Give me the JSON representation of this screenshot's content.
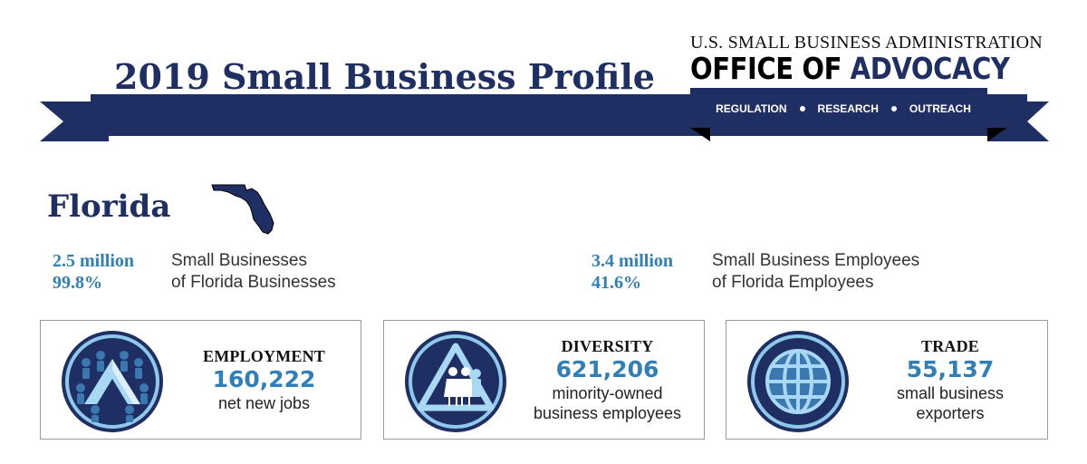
{
  "header": {
    "title": "2019 Small Business Profile",
    "agency": "U.S. SMALL BUSINESS ADMINISTRATION",
    "office_part1": "OFFICE OF",
    "office_part2": "ADVOCACY",
    "tagline": [
      "REGULATION",
      "RESEARCH",
      "OUTREACH"
    ]
  },
  "state": {
    "name": "Florida",
    "map_icon": "florida-state-silhouette"
  },
  "stats": {
    "businesses": {
      "count": "2.5 million",
      "share": "99.8%",
      "label_line1": "Small Businesses",
      "label_line2": "of Florida Businesses"
    },
    "employees": {
      "count": "3.4 million",
      "share": "41.6%",
      "label_line1": "Small Business Employees",
      "label_line2": "of Florida Employees"
    }
  },
  "cards": [
    {
      "heading": "EMPLOYMENT",
      "value": "160,222",
      "desc_line1": "net new jobs",
      "desc_line2": "",
      "icon": "employment-icon"
    },
    {
      "heading": "DIVERSITY",
      "value": "621,206",
      "desc_line1": "minority-owned",
      "desc_line2": "business employees",
      "icon": "diversity-icon"
    },
    {
      "heading": "TRADE",
      "value": "55,137",
      "desc_line1": "small business",
      "desc_line2": "exporters",
      "icon": "globe-icon"
    }
  ],
  "colors": {
    "navy": "#1f2f63",
    "accent_blue": "#2f7fb8",
    "light_blue": "#8fc8ea"
  }
}
